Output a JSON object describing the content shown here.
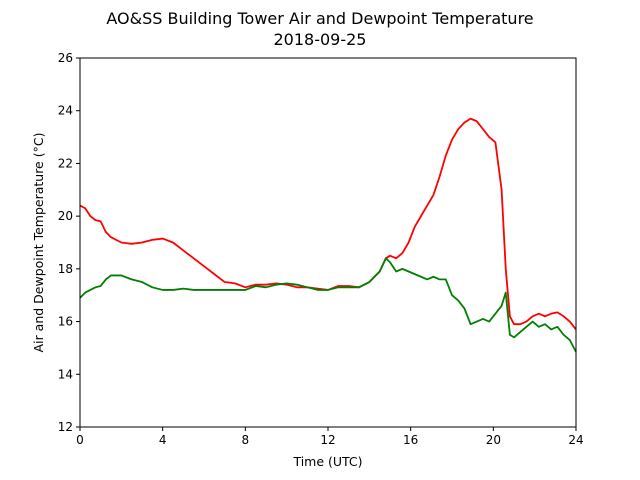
{
  "chart_data": {
    "type": "line",
    "title": "AO&SS Building Tower Air and Dewpoint Temperature",
    "subtitle": "2018-09-25",
    "xlabel": "Time (UTC)",
    "ylabel": "Air and Dewpoint Temperature (°C)",
    "xlim": [
      0,
      24
    ],
    "ylim": [
      12,
      26
    ],
    "xticks": [
      0,
      4,
      8,
      12,
      16,
      20,
      24
    ],
    "yticks": [
      12,
      14,
      16,
      18,
      20,
      22,
      24,
      26
    ],
    "grid": false,
    "legend": "none",
    "series": [
      {
        "color": "#ff0000",
        "x": [
          0,
          0.25,
          0.5,
          0.75,
          1.0,
          1.25,
          1.5,
          2.0,
          2.5,
          3.0,
          3.5,
          4.0,
          4.5,
          5.0,
          5.5,
          6.0,
          6.5,
          7.0,
          7.5,
          8.0,
          8.5,
          9.0,
          9.5,
          10.0,
          10.5,
          11.0,
          11.5,
          12.0,
          12.5,
          13.0,
          13.5,
          14.0,
          14.5,
          14.8,
          15.0,
          15.3,
          15.6,
          15.9,
          16.2,
          16.5,
          16.8,
          17.1,
          17.4,
          17.7,
          18.0,
          18.3,
          18.6,
          18.9,
          19.2,
          19.5,
          19.8,
          20.1,
          20.4,
          20.6,
          20.8,
          21.0,
          21.3,
          21.6,
          21.9,
          22.2,
          22.5,
          22.8,
          23.1,
          23.4,
          23.7,
          24.0
        ],
        "y": [
          20.4,
          20.3,
          20.0,
          19.85,
          19.8,
          19.4,
          19.2,
          19.0,
          18.95,
          19.0,
          19.1,
          19.15,
          19.0,
          18.7,
          18.4,
          18.1,
          17.8,
          17.5,
          17.45,
          17.3,
          17.4,
          17.4,
          17.45,
          17.4,
          17.3,
          17.3,
          17.25,
          17.2,
          17.35,
          17.35,
          17.3,
          17.5,
          17.9,
          18.4,
          18.5,
          18.4,
          18.6,
          19.0,
          19.6,
          20.0,
          20.4,
          20.8,
          21.5,
          22.3,
          22.9,
          23.3,
          23.55,
          23.7,
          23.6,
          23.3,
          23.0,
          22.8,
          21.0,
          18.0,
          16.2,
          15.9,
          15.9,
          16.0,
          16.2,
          16.3,
          16.2,
          16.3,
          16.35,
          16.2,
          16.0,
          15.7
        ]
      },
      {
        "color": "#008000",
        "x": [
          0,
          0.25,
          0.5,
          0.75,
          1.0,
          1.25,
          1.5,
          2.0,
          2.5,
          3.0,
          3.5,
          4.0,
          4.5,
          5.0,
          5.5,
          6.0,
          6.5,
          7.0,
          7.5,
          8.0,
          8.5,
          9.0,
          9.5,
          10.0,
          10.5,
          11.0,
          11.5,
          12.0,
          12.5,
          13.0,
          13.5,
          14.0,
          14.5,
          14.8,
          15.0,
          15.3,
          15.6,
          15.9,
          16.2,
          16.5,
          16.8,
          17.1,
          17.4,
          17.7,
          18.0,
          18.3,
          18.6,
          18.9,
          19.2,
          19.5,
          19.8,
          20.1,
          20.4,
          20.6,
          20.8,
          21.0,
          21.3,
          21.6,
          21.9,
          22.2,
          22.5,
          22.8,
          23.1,
          23.4,
          23.7,
          24.0
        ],
        "y": [
          16.9,
          17.1,
          17.2,
          17.3,
          17.35,
          17.6,
          17.75,
          17.75,
          17.6,
          17.5,
          17.3,
          17.2,
          17.2,
          17.25,
          17.2,
          17.2,
          17.2,
          17.2,
          17.2,
          17.2,
          17.35,
          17.3,
          17.4,
          17.45,
          17.4,
          17.3,
          17.2,
          17.2,
          17.3,
          17.3,
          17.3,
          17.5,
          17.9,
          18.4,
          18.25,
          17.9,
          18.0,
          17.9,
          17.8,
          17.7,
          17.6,
          17.7,
          17.6,
          17.6,
          17.0,
          16.8,
          16.5,
          15.9,
          16.0,
          16.1,
          16.0,
          16.3,
          16.6,
          17.1,
          15.5,
          15.4,
          15.6,
          15.8,
          16.0,
          15.8,
          15.9,
          15.7,
          15.8,
          15.5,
          15.3,
          14.85
        ]
      }
    ]
  }
}
